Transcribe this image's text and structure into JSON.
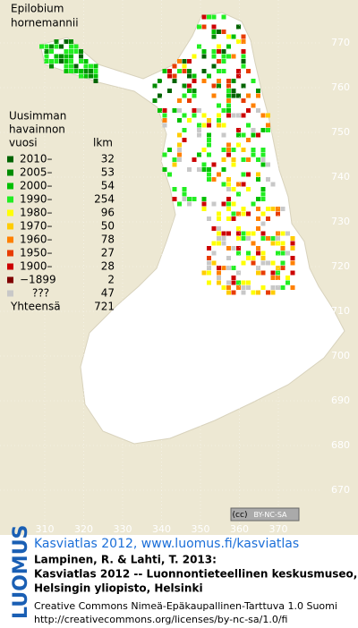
{
  "title": [
    "Epilobium",
    "hornemannii"
  ],
  "legend": {
    "header": [
      "Uusimman",
      "havainnon"
    ],
    "col_year": "vuosi",
    "col_count": "lkm",
    "rows": [
      {
        "label": "2010–",
        "count": 32,
        "color": "#006400"
      },
      {
        "label": "2005–",
        "count": 53,
        "color": "#008c00"
      },
      {
        "label": "2000–",
        "count": 54,
        "color": "#00c000"
      },
      {
        "label": "1990–",
        "count": 254,
        "color": "#22ee22"
      },
      {
        "label": "1980–",
        "count": 96,
        "color": "#ffff00"
      },
      {
        "label": "1970–",
        "count": 50,
        "color": "#ffcc00"
      },
      {
        "label": "1960–",
        "count": 78,
        "color": "#ff8000"
      },
      {
        "label": "1950–",
        "count": 27,
        "color": "#e83c00"
      },
      {
        "label": "1900–",
        "count": 28,
        "color": "#cc0000"
      },
      {
        "label": "−1899",
        "count": 2,
        "color": "#800000"
      },
      {
        "label": "???",
        "count": 47,
        "color": "#c8c8c8"
      }
    ],
    "total": {
      "label": "Yhteensä",
      "count": 721
    }
  },
  "grid": {
    "y_labels": [
      "770",
      "760",
      "750",
      "740",
      "730",
      "720",
      "710",
      "700",
      "690",
      "680",
      "670"
    ],
    "x_labels": [
      "310",
      "320",
      "330",
      "340",
      "350",
      "360",
      "370"
    ]
  },
  "license_badge": "BY-NC-SA",
  "footer": {
    "brand": "LUOMUS",
    "link": "Kasviatlas 2012, www.luomus.fi/kasviatlas",
    "citation": [
      "Lampinen, R. & Lahti, T. 2013:",
      "Kasviatlas 2012 -- Luonnontieteellinen keskusmuseo,",
      "Helsingin yliopisto, Helsinki"
    ],
    "license": [
      "Creative Commons Nimeä-Epäkaupallinen-Tarttuva 1.0 Suomi",
      "http://creativecommons.org/licenses/by-nc-sa/1.0/fi"
    ]
  }
}
